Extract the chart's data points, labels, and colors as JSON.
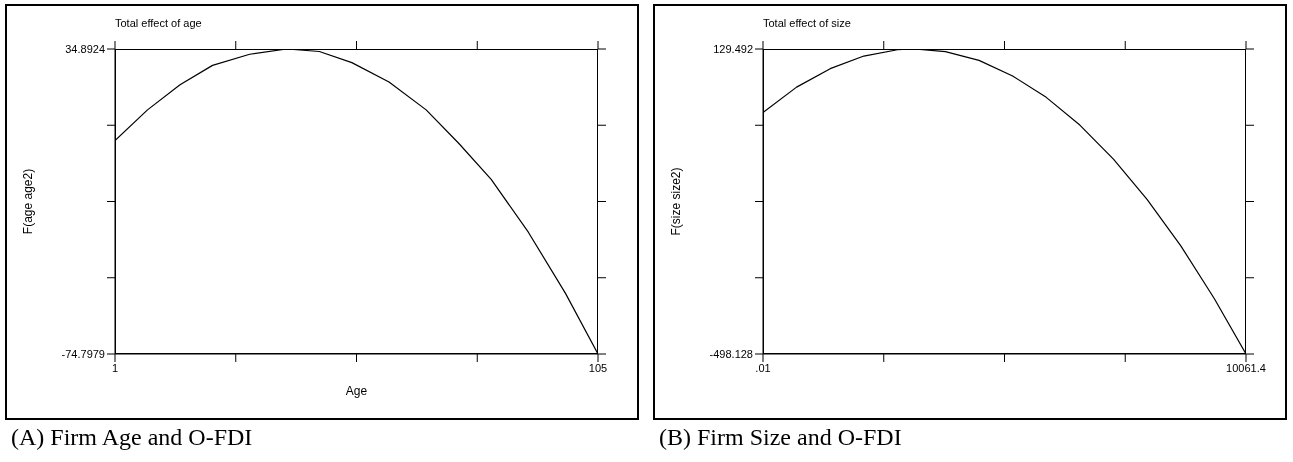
{
  "chart_data": [
    {
      "type": "line",
      "title": "Total effect of age",
      "xlabel": "Age",
      "ylabel": "F(age age2)",
      "color": "#000000",
      "marker": "none",
      "x": [
        1,
        8,
        15,
        22,
        30,
        38,
        45,
        52,
        60,
        68,
        75,
        82,
        90,
        98,
        105
      ],
      "values": [
        2,
        13,
        22,
        29,
        33,
        34.8924,
        34,
        30,
        23,
        13,
        1,
        -12,
        -31,
        -53,
        -74.7979
      ],
      "xlim": [
        1,
        105
      ],
      "xticks": [
        1,
        {
          "value": 27,
          "label": null
        },
        {
          "value": 53,
          "label": null
        },
        {
          "value": 79,
          "label": null
        },
        105
      ],
      "ylim": [
        -74.7979,
        34.8924
      ],
      "yticks": [
        -74.7979,
        {
          "value": -47.3753,
          "label": null
        },
        {
          "value": -19.9527,
          "label": null
        },
        {
          "value": 7.4699,
          "label": null
        },
        34.8924
      ],
      "annotations": [
        "(A) Firm Age and O-FDI"
      ]
    },
    {
      "type": "line",
      "title": "Total effect of size",
      "ylabel": "F(size size2)",
      "color": "#000000",
      "marker": "none",
      "x": [
        0.01,
        700,
        1400,
        2100,
        2800,
        3150,
        3800,
        4500,
        5200,
        5900,
        6600,
        7300,
        8000,
        8700,
        9400,
        10061.4
      ],
      "values": [
        -1,
        51,
        89,
        115,
        128,
        129.492,
        124,
        106,
        74,
        30,
        -27,
        -97,
        -180,
        -275,
        -384,
        -498.128
      ],
      "xlim": [
        0.01,
        10061.4
      ],
      "xticks": [
        {
          "value": 0.01,
          "label": ".01"
        },
        {
          "value": 2515.36,
          "label": null
        },
        {
          "value": 5030.7,
          "label": null
        },
        {
          "value": 7546.05,
          "label": null
        },
        10061.4
      ],
      "ylim": [
        -498.128,
        129.492
      ],
      "yticks": [
        -498.128,
        {
          "value": -341.223,
          "label": null
        },
        {
          "value": -184.318,
          "label": null
        },
        {
          "value": -27.413,
          "label": null
        },
        129.492
      ],
      "annotations": [
        "(B) Firm Size and O-FDI"
      ]
    }
  ]
}
